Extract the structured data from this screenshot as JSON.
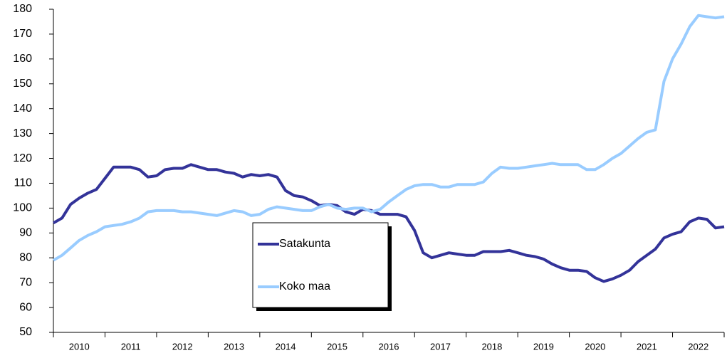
{
  "chart_data": {
    "type": "line",
    "categories": [
      "2010",
      null,
      null,
      null,
      null,
      null,
      "2011",
      null,
      null,
      null,
      null,
      null,
      "2012",
      null,
      null,
      null,
      null,
      null,
      "2013",
      null,
      null,
      null,
      null,
      null,
      "2014",
      null,
      null,
      null,
      null,
      null,
      "2015",
      null,
      null,
      null,
      null,
      null,
      "2016",
      null,
      null,
      null,
      null,
      null,
      "2017",
      null,
      null,
      null,
      null,
      null,
      "2018",
      null,
      null,
      null,
      null,
      null,
      "2019",
      null,
      null,
      null,
      null,
      null,
      "2020",
      null,
      null,
      null,
      null,
      null,
      "2021",
      null,
      null,
      null,
      null,
      null,
      "2022",
      null,
      null,
      null,
      null,
      null,
      null
    ],
    "series": [
      {
        "name": "Satakunta",
        "color": "#333399",
        "values": [
          94,
          96,
          101.5,
          104,
          106,
          107.5,
          112,
          116.5,
          116.5,
          116.5,
          115.5,
          112.5,
          113,
          115.5,
          116,
          116,
          117.5,
          116.5,
          115.5,
          115.5,
          114.5,
          114,
          112.5,
          113.5,
          113,
          113.5,
          112.5,
          107,
          105,
          104.5,
          103,
          101,
          101.5,
          101,
          98.5,
          97.5,
          99.5,
          99,
          97.5,
          97.5,
          97.5,
          96.5,
          91,
          82,
          80,
          81,
          82,
          81.5,
          81,
          81,
          82.5,
          82.5,
          82.5,
          83,
          82,
          81,
          80.5,
          79.5,
          77.5,
          76,
          75,
          75,
          74.5,
          72,
          70.5,
          71.5,
          73,
          75,
          78.5,
          81,
          83.5,
          88,
          89.5,
          90.5,
          94.5,
          96,
          95.5,
          92,
          92.5
        ]
      },
      {
        "name": "Koko maa",
        "color": "#99ccff",
        "values": [
          79,
          81,
          84,
          87,
          89,
          90.5,
          92.5,
          93,
          93.5,
          94.5,
          96,
          98.5,
          99,
          99,
          99,
          98.5,
          98.5,
          98,
          97.5,
          97,
          98,
          99,
          98.5,
          97,
          97.5,
          99.5,
          100.5,
          100,
          99.5,
          99,
          99,
          100.5,
          101.5,
          100,
          99.5,
          100,
          100,
          98.5,
          99.5,
          102.5,
          105,
          107.5,
          109,
          109.5,
          109.5,
          108.5,
          108.5,
          109.5,
          109.5,
          109.5,
          110.5,
          114,
          116.5,
          116,
          116,
          116.5,
          117,
          117.5,
          118,
          117.5,
          117.5,
          117.5,
          115.5,
          115.5,
          117.5,
          120,
          122,
          125,
          128,
          130.5,
          131.5,
          151,
          160,
          166,
          173,
          177.5,
          177,
          176.5,
          177
        ]
      }
    ],
    "ylim": [
      50,
      180
    ],
    "yticks": [
      50,
      60,
      70,
      80,
      90,
      100,
      110,
      120,
      130,
      140,
      150,
      160,
      170,
      180
    ]
  }
}
